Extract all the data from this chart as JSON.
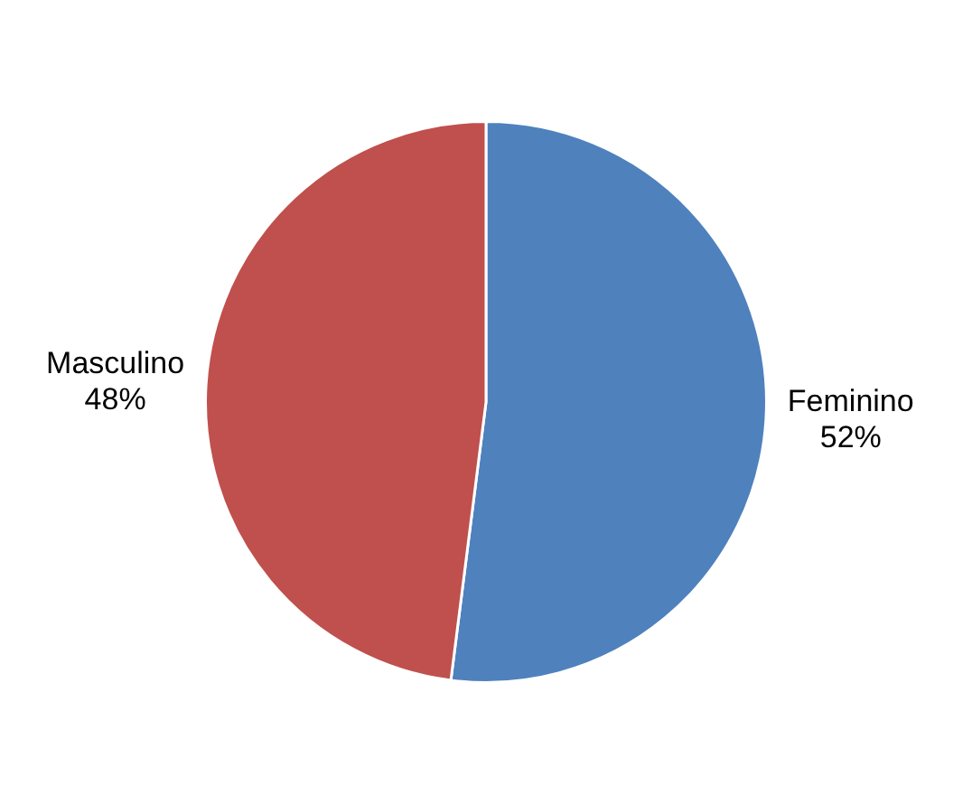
{
  "chart_data": {
    "type": "pie",
    "categories": [
      "Feminino",
      "Masculino"
    ],
    "values": [
      52,
      48
    ],
    "value_labels": [
      "52%",
      "48%"
    ],
    "colors": [
      "#4f81bd",
      "#c0504d"
    ],
    "legend": false
  }
}
